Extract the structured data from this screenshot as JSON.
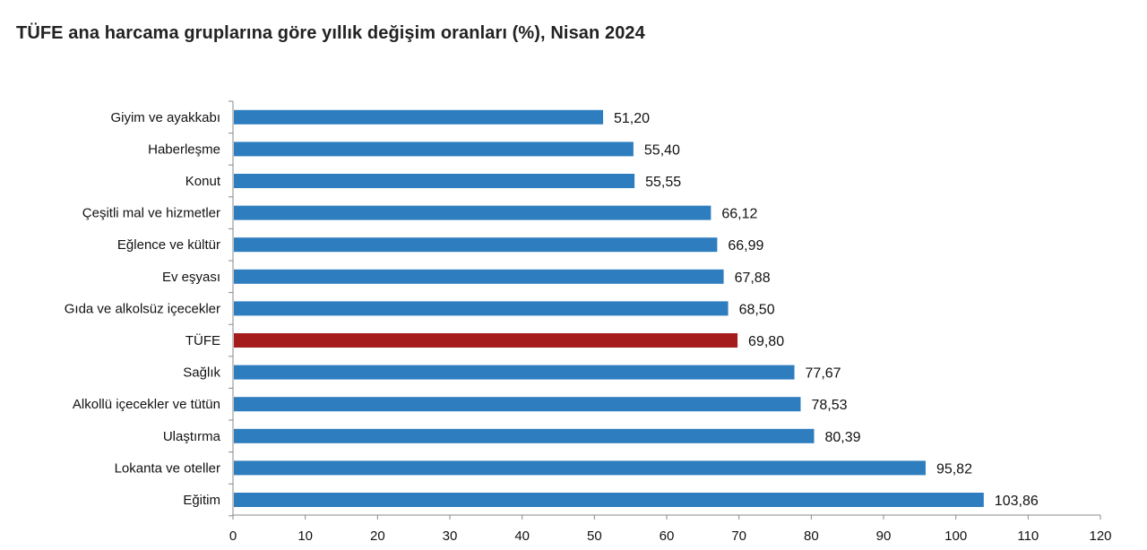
{
  "chart_data": {
    "type": "bar",
    "orientation": "horizontal",
    "title": "TÜFE ana harcama gruplarına göre yıllık değişim oranları (%), Nisan 2024",
    "xlabel": "",
    "ylabel": "",
    "xlim": [
      0,
      120
    ],
    "xticks": [
      0,
      10,
      20,
      30,
      40,
      50,
      60,
      70,
      80,
      90,
      100,
      110,
      120
    ],
    "grid": false,
    "categories": [
      "Giyim ve ayakkabı",
      "Haberleşme",
      "Konut",
      "Çeşitli mal ve hizmetler",
      "Eğlence ve kültür",
      "Ev eşyası",
      "Gıda ve alkolsüz içecekler",
      "TÜFE",
      "Sağlık",
      "Alkollü içecekler ve tütün",
      "Ulaştırma",
      "Lokanta ve oteller",
      "Eğitim"
    ],
    "values": [
      51.2,
      55.4,
      55.55,
      66.12,
      66.99,
      67.88,
      68.5,
      69.8,
      77.67,
      78.53,
      80.39,
      95.82,
      103.86
    ],
    "value_labels": [
      "51,20",
      "55,40",
      "55,55",
      "66,12",
      "66,99",
      "67,88",
      "68,50",
      "69,80",
      "77,67",
      "78,53",
      "80,39",
      "95,82",
      "103,86"
    ],
    "colors": {
      "default": "#2e7dbf",
      "highlight": "#a51c1c"
    },
    "highlight_category": "TÜFE"
  }
}
